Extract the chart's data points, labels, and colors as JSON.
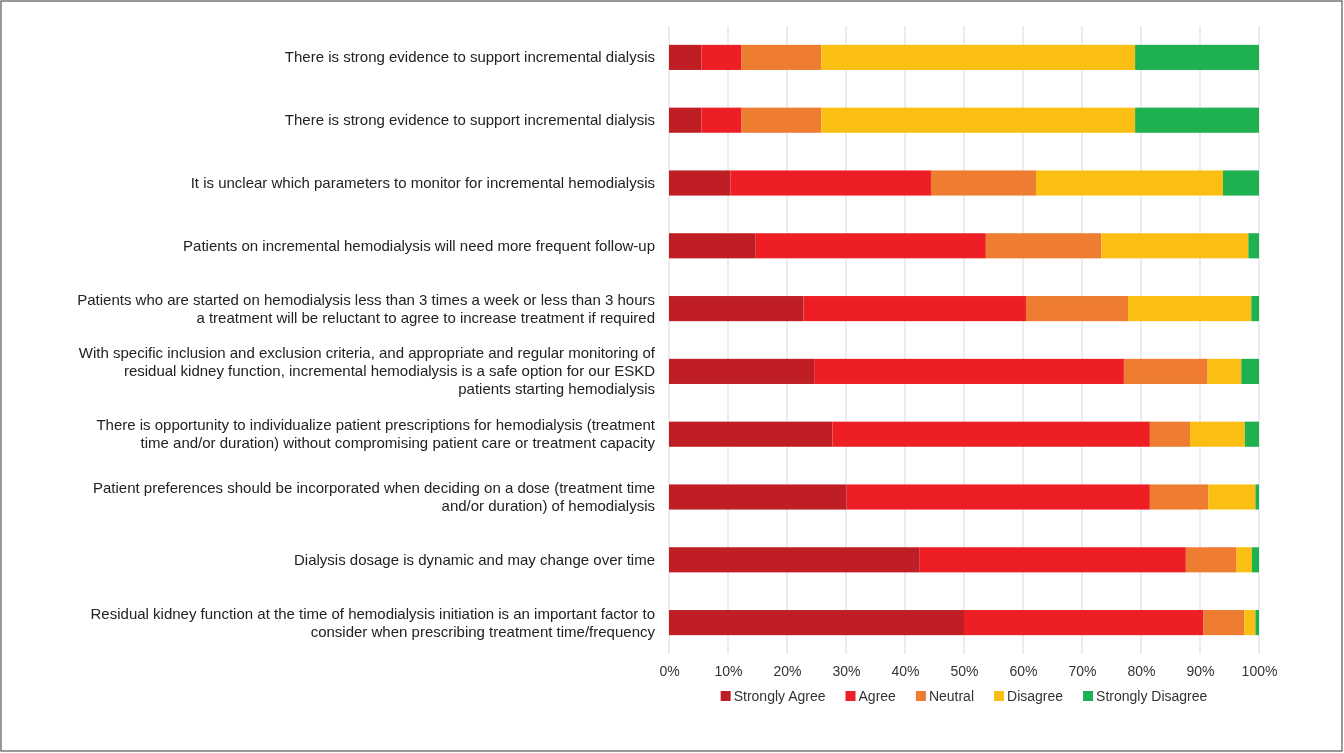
{
  "chart_data": {
    "type": "bar",
    "orientation": "horizontal",
    "stacked": true,
    "categories": [
      "There is strong evidence to support incremental dialysis",
      "There is strong evidence to support incremental dialysis",
      "It is unclear which parameters to monitor for incremental hemodialysis",
      "Patients on incremental hemodialysis will need more frequent follow-up",
      "Patients who are started on hemodialysis less than 3 times a week or less than 3 hours a treatment will be reluctant to agree to increase treatment if required",
      "With specific inclusion and exclusion criteria, and appropriate and regular monitoring of residual kidney function, incremental hemodialysis is a safe option for our ESKD patients starting hemodialysis",
      "There is opportunity to individualize patient prescriptions for hemodialysis (treatment time and/or duration) without compromising patient care or treatment capacity",
      "Patient preferences should be incorporated when deciding on a dose (treatment time and/or duration) of hemodialysis",
      "Dialysis dosage is dynamic and may change over time",
      "Residual kidney function at the time of hemodialysis initiation is an important factor to consider when prescribing treatment time/frequency"
    ],
    "series": [
      {
        "name": "Strongly Agree",
        "color": "#be1e24",
        "values": [
          5.5,
          5.5,
          10.4,
          14.7,
          22.8,
          24.6,
          27.7,
          30.1,
          42.5,
          50.0
        ]
      },
      {
        "name": "Agree",
        "color": "#ed1f24",
        "values": [
          6.8,
          6.8,
          34.0,
          39.0,
          37.7,
          52.5,
          53.8,
          51.4,
          45.1,
          40.6
        ]
      },
      {
        "name": "Neutral",
        "color": "#ee7d31",
        "values": [
          13.5,
          13.5,
          17.8,
          19.6,
          17.3,
          14.2,
          6.8,
          9.9,
          8.6,
          6.9
        ]
      },
      {
        "name": "Disagree",
        "color": "#fbbf14",
        "values": [
          53.2,
          53.2,
          31.7,
          24.9,
          20.9,
          5.7,
          9.3,
          8.0,
          2.6,
          1.9
        ]
      },
      {
        "name": "Strongly Disagree",
        "color": "#1fb04f",
        "values": [
          21.0,
          21.0,
          6.1,
          1.8,
          1.3,
          3.0,
          2.4,
          0.6,
          1.2,
          0.6
        ]
      }
    ],
    "xlim": [
      0,
      100
    ],
    "xticks": [
      {
        "value": 0,
        "label": "0%"
      },
      {
        "value": 10,
        "label": "10%"
      },
      {
        "value": 20,
        "label": "20%"
      },
      {
        "value": 30,
        "label": "30%"
      },
      {
        "value": 40,
        "label": "40%"
      },
      {
        "value": 50,
        "label": "50%"
      },
      {
        "value": 60,
        "label": "60%"
      },
      {
        "value": 70,
        "label": "70%"
      },
      {
        "value": 80,
        "label": "80%"
      },
      {
        "value": 90,
        "label": "90%"
      },
      {
        "value": 100,
        "label": "100%"
      }
    ],
    "grid": "x",
    "legend": "bottom"
  }
}
